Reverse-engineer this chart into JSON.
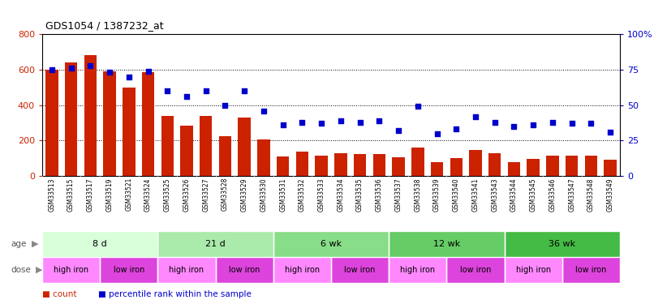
{
  "title": "GDS1054 / 1387232_at",
  "samples": [
    "GSM33513",
    "GSM33515",
    "GSM33517",
    "GSM33519",
    "GSM33521",
    "GSM33524",
    "GSM33525",
    "GSM33526",
    "GSM33527",
    "GSM33528",
    "GSM33529",
    "GSM33530",
    "GSM33531",
    "GSM33532",
    "GSM33533",
    "GSM33534",
    "GSM33535",
    "GSM33536",
    "GSM33537",
    "GSM33538",
    "GSM33539",
    "GSM33540",
    "GSM33541",
    "GSM33543",
    "GSM33544",
    "GSM33545",
    "GSM33546",
    "GSM33547",
    "GSM33548",
    "GSM33549"
  ],
  "counts": [
    600,
    638,
    680,
    590,
    500,
    585,
    340,
    285,
    340,
    225,
    330,
    205,
    110,
    135,
    115,
    130,
    125,
    125,
    103,
    160,
    80,
    100,
    148,
    130,
    80,
    95,
    115,
    115,
    115,
    90
  ],
  "percentiles": [
    75,
    76,
    78,
    73,
    70,
    74,
    60,
    56,
    60,
    50,
    60,
    46,
    36,
    38,
    37,
    39,
    38,
    39,
    32,
    49,
    30,
    33,
    42,
    38,
    35,
    36,
    38,
    37,
    37,
    31
  ],
  "bar_color": "#cc2200",
  "dot_color": "#0000cc",
  "left_ylim": [
    0,
    800
  ],
  "right_ylim": [
    0,
    100
  ],
  "left_yticks": [
    0,
    200,
    400,
    600,
    800
  ],
  "right_yticks": [
    0,
    25,
    50,
    75,
    100
  ],
  "right_yticklabels": [
    "0",
    "25",
    "50",
    "75",
    "100%"
  ],
  "grid_values": [
    200,
    400,
    600
  ],
  "age_groups": [
    {
      "label": "8 d",
      "start": 0,
      "end": 6,
      "color": "#d8ffd8"
    },
    {
      "label": "21 d",
      "start": 6,
      "end": 12,
      "color": "#aaeaaa"
    },
    {
      "label": "6 wk",
      "start": 12,
      "end": 18,
      "color": "#88dd88"
    },
    {
      "label": "12 wk",
      "start": 18,
      "end": 24,
      "color": "#66cc66"
    },
    {
      "label": "36 wk",
      "start": 24,
      "end": 30,
      "color": "#44bb44"
    }
  ],
  "dose_groups": [
    {
      "label": "high iron",
      "start": 0,
      "end": 3,
      "color": "#ff88ff"
    },
    {
      "label": "low iron",
      "start": 3,
      "end": 6,
      "color": "#dd44dd"
    },
    {
      "label": "high iron",
      "start": 6,
      "end": 9,
      "color": "#ff88ff"
    },
    {
      "label": "low iron",
      "start": 9,
      "end": 12,
      "color": "#dd44dd"
    },
    {
      "label": "high iron",
      "start": 12,
      "end": 15,
      "color": "#ff88ff"
    },
    {
      "label": "low iron",
      "start": 15,
      "end": 18,
      "color": "#dd44dd"
    },
    {
      "label": "high iron",
      "start": 18,
      "end": 21,
      "color": "#ff88ff"
    },
    {
      "label": "low iron",
      "start": 21,
      "end": 24,
      "color": "#dd44dd"
    },
    {
      "label": "high iron",
      "start": 24,
      "end": 27,
      "color": "#ff88ff"
    },
    {
      "label": "low iron",
      "start": 27,
      "end": 30,
      "color": "#dd44dd"
    }
  ],
  "xtick_bg": "#c8c8c8",
  "bg_color": "#ffffff",
  "axis_color_left": "#cc2200",
  "axis_color_right": "#0000cc"
}
